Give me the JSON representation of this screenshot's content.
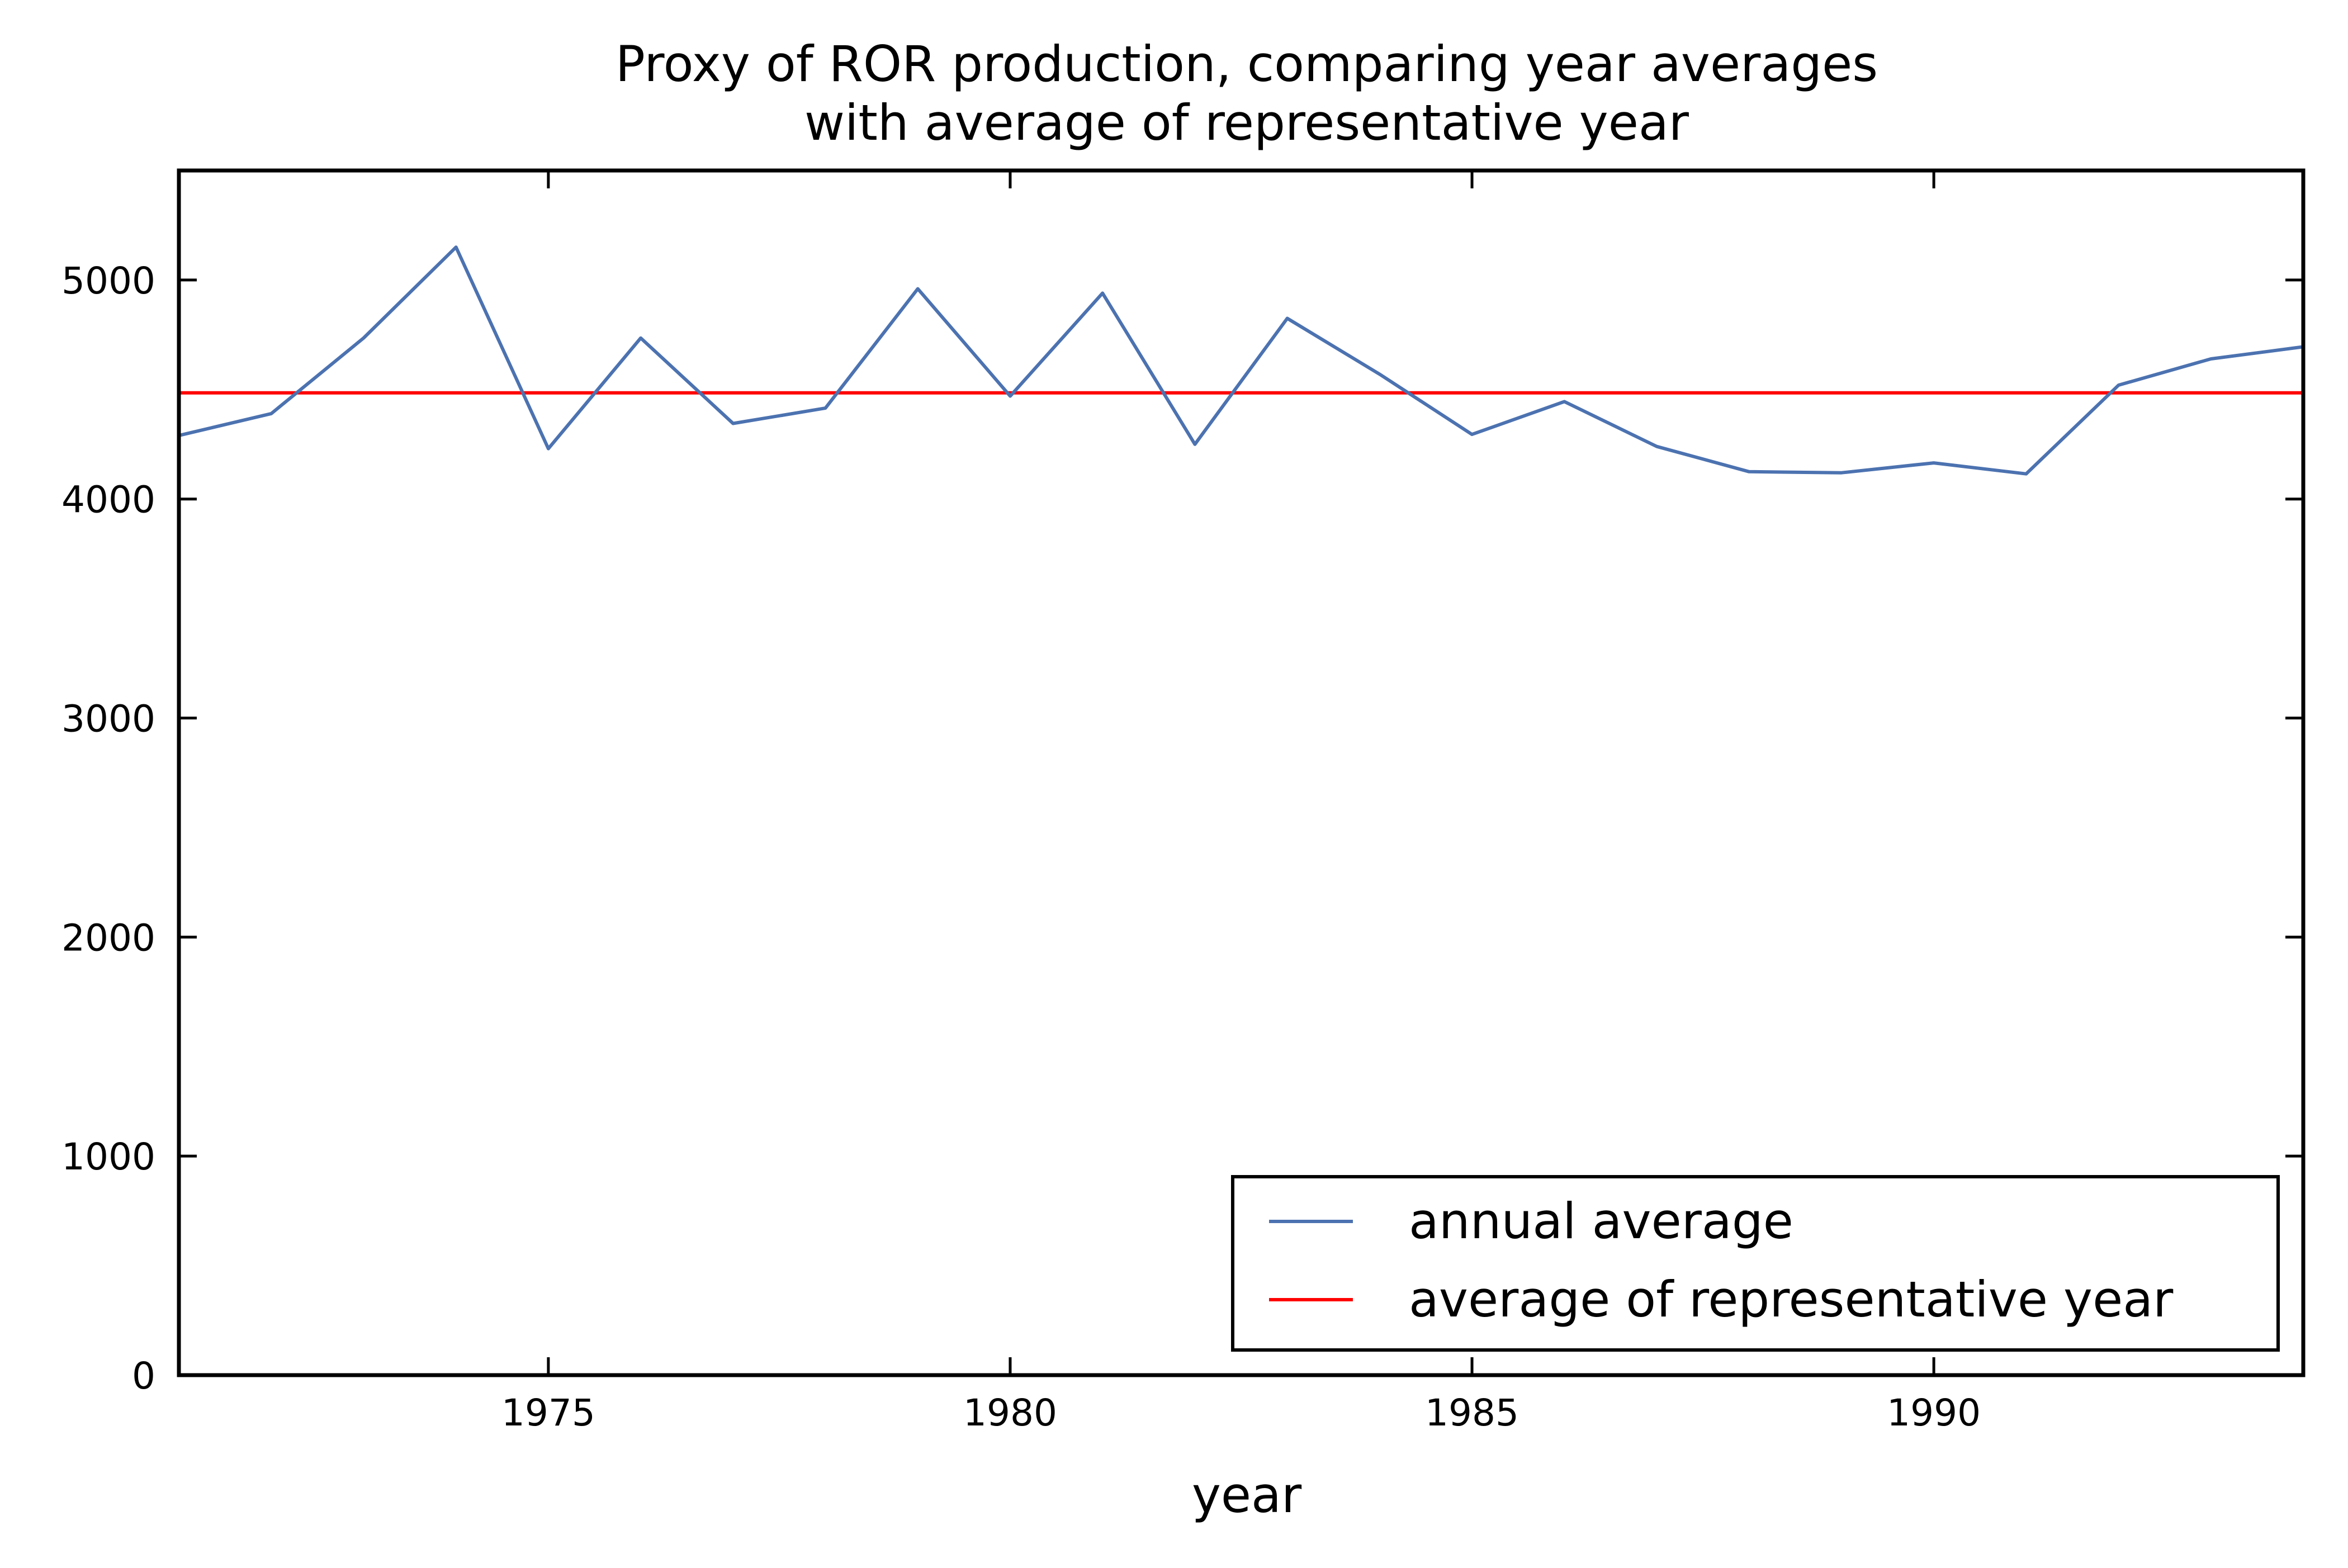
{
  "chart_data": {
    "type": "line",
    "title_lines": [
      "Proxy of ROR production, comparing year averages",
      "with average of representative year"
    ],
    "xlabel": "year",
    "ylabel": "",
    "xlim": [
      1971,
      1994
    ],
    "ylim": [
      0,
      5500
    ],
    "x_ticks": [
      1975,
      1980,
      1985,
      1990
    ],
    "y_ticks": [
      0,
      1000,
      2000,
      3000,
      4000,
      5000
    ],
    "grid": false,
    "legend_position": "lower-right",
    "series": [
      {
        "name": "annual average",
        "color": "#4c72b0",
        "x": [
          1971,
          1972,
          1973,
          1974,
          1975,
          1976,
          1977,
          1978,
          1979,
          1980,
          1981,
          1982,
          1983,
          1984,
          1985,
          1986,
          1987,
          1988,
          1989,
          1990,
          1991,
          1992,
          1993,
          1994
        ],
        "values": [
          4290,
          4390,
          4735,
          5150,
          4230,
          4735,
          4345,
          4415,
          4960,
          4470,
          4940,
          4250,
          4825,
          4570,
          4295,
          4445,
          4240,
          4125,
          4120,
          4165,
          4115,
          4520,
          4640,
          4695
        ]
      }
    ],
    "hlines": [
      {
        "name": "average of representative year",
        "color": "#ff0000",
        "y": 4485
      }
    ]
  }
}
